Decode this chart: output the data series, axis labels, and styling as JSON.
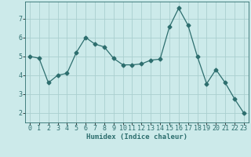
{
  "x": [
    0,
    1,
    2,
    3,
    4,
    5,
    6,
    7,
    8,
    9,
    10,
    11,
    12,
    13,
    14,
    15,
    16,
    17,
    18,
    19,
    20,
    21,
    22,
    23
  ],
  "y": [
    5.0,
    4.9,
    3.6,
    4.0,
    4.1,
    5.2,
    6.0,
    5.65,
    5.5,
    4.9,
    4.55,
    4.55,
    4.6,
    4.8,
    4.85,
    6.55,
    7.55,
    6.65,
    5.0,
    3.55,
    4.3,
    3.6,
    2.75,
    2.0
  ],
  "line_color": "#2d6e6e",
  "marker": "D",
  "marker_size": 2.5,
  "bg_color": "#cceaea",
  "grid_color": "#aacfcf",
  "xlabel": "Humidex (Indice chaleur)",
  "xlabel_fontsize": 6.5,
  "tick_fontsize": 6,
  "ylim": [
    1.5,
    7.9
  ],
  "xlim": [
    -0.5,
    23.5
  ],
  "yticks": [
    2,
    3,
    4,
    5,
    6,
    7
  ],
  "xticks": [
    0,
    1,
    2,
    3,
    4,
    5,
    6,
    7,
    8,
    9,
    10,
    11,
    12,
    13,
    14,
    15,
    16,
    17,
    18,
    19,
    20,
    21,
    22,
    23
  ]
}
